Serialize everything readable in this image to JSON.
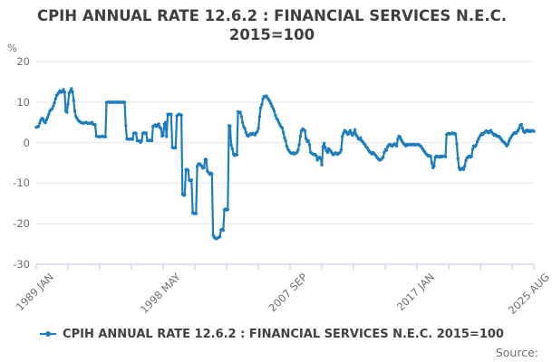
{
  "title": "CPIH ANNUAL RATE 12.6.2 : FINANCIAL SERVICES N.E.C. 2015=100",
  "y_unit": "%",
  "legend": {
    "label": "CPIH ANNUAL RATE 12.6.2 : FINANCIAL SERVICES N.E.C. 2015=100"
  },
  "footer": {
    "source_label": "Source:"
  },
  "colors": {
    "line": "#1d7dbe",
    "grid": "#e6e6e6",
    "axis": "#ccd2e8",
    "tick_text": "#6e6e6e",
    "title_text": "#3f3f3f"
  },
  "chart_data": {
    "type": "line",
    "title": "CPIH ANNUAL RATE 12.6.2 : FINANCIAL SERVICES N.E.C. 2015=100",
    "series_name": "CPIH ANNUAL RATE 12.6.2 : FINANCIAL SERVICES N.E.C. 2015=100",
    "freq": "monthly",
    "x_start": "1989-01",
    "x_end": "2025-08",
    "xtick_labels": [
      "1989 JAN",
      "1998 MAY",
      "2007 SEP",
      "2017 JAN",
      "2025 AUG"
    ],
    "ytick_labels": [
      "20",
      "10",
      "0",
      "-10",
      "-20",
      "-30"
    ],
    "yticks": [
      20,
      10,
      0,
      -10,
      -20,
      -30
    ],
    "ylim": [
      -30,
      20
    ],
    "ylabel": "%",
    "xlabel": "",
    "grid": "horizontal",
    "legend_position": "bottom",
    "minor_xtick_interval_months": 28,
    "values": [
      3.8,
      3.9,
      4.0,
      4.8,
      5.5,
      6.0,
      5.8,
      5.2,
      4.9,
      5.6,
      6.2,
      7.0,
      7.8,
      8.2,
      8.3,
      9.0,
      9.8,
      10.8,
      11.6,
      12.0,
      12.4,
      12.8,
      12.4,
      12.6,
      13.1,
      12.4,
      7.8,
      7.5,
      9.5,
      12.2,
      12.7,
      13.3,
      12.5,
      10.4,
      7.8,
      6.4,
      6.0,
      5.5,
      5.3,
      5.0,
      4.9,
      4.8,
      4.8,
      4.9,
      5.0,
      4.8,
      4.7,
      4.8,
      4.8,
      5.0,
      4.6,
      4.5,
      4.4,
      1.6,
      1.5,
      1.5,
      1.4,
      1.5,
      1.6,
      1.5,
      1.5,
      1.4,
      9.9,
      10.0,
      10.0,
      9.9,
      10.0,
      10.0,
      9.9,
      10.0,
      10.0,
      9.9,
      10.0,
      10.0,
      9.9,
      10.0,
      10.0,
      9.9,
      10.0,
      4.2,
      0.9,
      0.9,
      0.8,
      0.9,
      0.9,
      0.8,
      2.3,
      2.4,
      2.3,
      0.5,
      0.5,
      0.4,
      0.1,
      0.5,
      2.3,
      2.4,
      2.3,
      2.4,
      0.5,
      0.5,
      0.6,
      0.5,
      0.5,
      4.0,
      4.2,
      4.4,
      4.0,
      4.3,
      4.6,
      3.8,
      3.5,
      1.6,
      1.8,
      4.5,
      5.0,
      1.5,
      7.0,
      7.0,
      6.9,
      7.0,
      -1.2,
      -1.3,
      -1.2,
      -1.3,
      6.6,
      6.8,
      7.0,
      6.9,
      6.8,
      -12.7,
      -13.0,
      -12.9,
      -6.7,
      -6.6,
      -6.8,
      -9.3,
      -9.4,
      -9.2,
      -17.3,
      -17.5,
      -17.4,
      -17.5,
      -5.9,
      -5.3,
      -5.2,
      -5.5,
      -5.8,
      -6.3,
      -6.2,
      -4.1,
      -4.2,
      -7.0,
      -7.4,
      -7.8,
      -7.5,
      -7.7,
      -22.8,
      -23.3,
      -23.6,
      -23.7,
      -23.5,
      -23.4,
      -23.2,
      -21.5,
      -21.4,
      -21.6,
      -16.5,
      -16.4,
      -16.6,
      -16.5,
      4.2,
      4.1,
      -0.6,
      -1.5,
      -2.8,
      -3.2,
      -2.9,
      -3.0,
      7.6,
      7.4,
      7.5,
      6.4,
      5.0,
      3.9,
      3.5,
      2.5,
      1.8,
      1.6,
      1.9,
      2.2,
      2.0,
      2.3,
      2.1,
      1.9,
      2.4,
      2.7,
      3.5,
      6.4,
      8.6,
      9.4,
      10.8,
      11.4,
      11.3,
      11.5,
      11.0,
      10.6,
      10.2,
      9.6,
      9.0,
      8.4,
      7.8,
      6.7,
      6.0,
      5.6,
      5.0,
      4.4,
      3.9,
      3.6,
      2.5,
      1.2,
      0.5,
      -0.9,
      -1.6,
      -2.0,
      -2.4,
      -2.6,
      -2.7,
      -2.5,
      -2.8,
      -2.6,
      -2.4,
      -1.8,
      -0.5,
      1.6,
      2.9,
      3.4,
      3.2,
      2.9,
      1.0,
      0.3,
      0.5,
      -0.5,
      -2.4,
      -2.6,
      -2.8,
      -3.0,
      -2.9,
      -3.2,
      -4.3,
      -3.8,
      -3.6,
      -4.0,
      -5.5,
      -1.0,
      -0.2,
      -1.3,
      -2.0,
      -2.4,
      -1.5,
      -1.8,
      -2.2,
      -2.6,
      -3.0,
      -2.8,
      -2.5,
      -2.7,
      -2.9,
      -2.6,
      -2.4,
      -1.8,
      1.5,
      2.3,
      3.0,
      2.8,
      2.4,
      2.0,
      2.6,
      3.0,
      2.2,
      1.8,
      2.4,
      3.2,
      2.0,
      1.6,
      1.0,
      0.8,
      1.2,
      0.5,
      0.2,
      -0.2,
      -0.5,
      -1.0,
      -1.3,
      -1.8,
      -2.2,
      -2.5,
      -2.8,
      -2.4,
      -2.7,
      -3.0,
      -3.4,
      -3.8,
      -4.1,
      -4.3,
      -4.2,
      -3.9,
      -3.6,
      -2.4,
      -1.7,
      -1.9,
      -1.0,
      -0.6,
      -0.4,
      -0.7,
      -0.9,
      -0.5,
      -0.3,
      -0.6,
      -0.8,
      0.9,
      1.6,
      1.4,
      0.7,
      0.2,
      -0.2,
      -0.5,
      -0.8,
      -0.4,
      -0.6,
      -0.5,
      -0.4,
      -0.6,
      -0.5,
      -0.4,
      -0.6,
      -0.5,
      -0.5,
      -0.4,
      -0.6,
      -0.8,
      -1.2,
      -1.6,
      -2.0,
      -2.4,
      -2.8,
      -3.1,
      -3.3,
      -3.2,
      -3.4,
      -5.0,
      -6.2,
      -5.8,
      -3.6,
      -3.3,
      -3.5,
      -3.4,
      -3.6,
      -3.3,
      -3.5,
      -3.4,
      -3.3,
      -3.5,
      2.0,
      2.2,
      2.3,
      2.1,
      2.2,
      2.4,
      2.2,
      2.3,
      2.1,
      -0.4,
      -4.0,
      -6.2,
      -6.7,
      -6.5,
      -6.3,
      -6.6,
      -5.8,
      -4.4,
      -3.8,
      -3.5,
      -3.3,
      -3.6,
      -3.4,
      -1.6,
      -0.8,
      -1.0,
      -0.6,
      0.2,
      0.8,
      1.4,
      1.8,
      2.2,
      2.0,
      2.4,
      2.6,
      2.9,
      2.7,
      2.4,
      2.8,
      3.0,
      2.5,
      2.2,
      1.8,
      2.0,
      1.7,
      1.5,
      1.6,
      1.3,
      0.9,
      0.5,
      0.2,
      0.0,
      -0.3,
      -0.8,
      -0.5,
      0.3,
      0.9,
      1.4,
      1.8,
      2.2,
      2.5,
      2.3,
      2.6,
      3.0,
      3.5,
      4.3,
      4.5,
      3.5,
      2.8,
      2.5,
      2.9,
      3.1,
      2.8,
      3.0,
      2.7,
      2.9,
      3.0,
      2.8
    ]
  }
}
